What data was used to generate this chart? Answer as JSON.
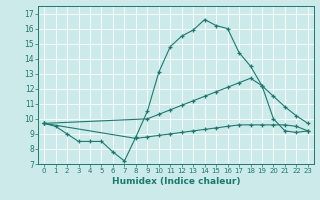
{
  "xlabel": "Humidex (Indice chaleur)",
  "bg_color": "#cdeaea",
  "grid_color": "#b8d8d8",
  "line_color": "#1a7a6e",
  "xlim": [
    -0.5,
    23.5
  ],
  "ylim": [
    7,
    17.5
  ],
  "xticks": [
    0,
    1,
    2,
    3,
    4,
    5,
    6,
    7,
    8,
    9,
    10,
    11,
    12,
    13,
    14,
    15,
    16,
    17,
    18,
    19,
    20,
    21,
    22,
    23
  ],
  "yticks": [
    7,
    8,
    9,
    10,
    11,
    12,
    13,
    14,
    15,
    16,
    17
  ],
  "series": [
    {
      "x": [
        0,
        1,
        2,
        3,
        4,
        5,
        6,
        7,
        8,
        9,
        10,
        11,
        12,
        13,
        14,
        15,
        16,
        17,
        18,
        19,
        20,
        21,
        22,
        23
      ],
      "y": [
        9.7,
        9.5,
        9.0,
        8.5,
        8.5,
        8.5,
        7.8,
        7.2,
        8.8,
        10.5,
        13.1,
        14.8,
        15.5,
        15.9,
        16.6,
        16.2,
        16.0,
        14.4,
        13.5,
        12.2,
        10.0,
        9.2,
        9.1,
        9.2
      ]
    },
    {
      "x": [
        0,
        9,
        10,
        11,
        12,
        13,
        14,
        15,
        16,
        17,
        18,
        19,
        20,
        21,
        22,
        23
      ],
      "y": [
        9.7,
        10.0,
        10.3,
        10.6,
        10.9,
        11.2,
        11.5,
        11.8,
        12.1,
        12.4,
        12.7,
        12.2,
        11.5,
        10.8,
        10.2,
        9.7
      ]
    },
    {
      "x": [
        0,
        8,
        9,
        10,
        11,
        12,
        13,
        14,
        15,
        16,
        17,
        18,
        19,
        20,
        21,
        22,
        23
      ],
      "y": [
        9.7,
        8.7,
        8.8,
        8.9,
        9.0,
        9.1,
        9.2,
        9.3,
        9.4,
        9.5,
        9.6,
        9.6,
        9.6,
        9.6,
        9.6,
        9.5,
        9.2
      ]
    }
  ]
}
